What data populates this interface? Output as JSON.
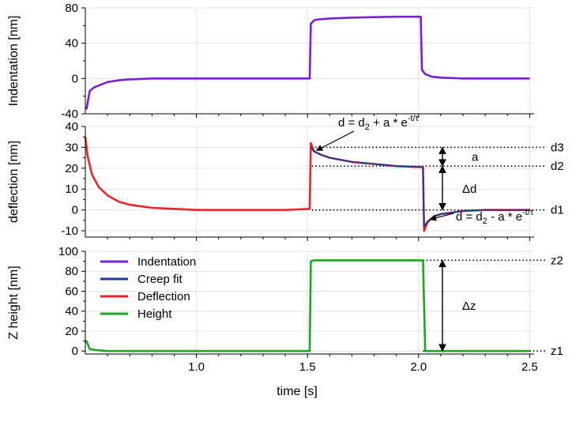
{
  "chart_data": [
    {
      "type": "line",
      "id": "indentation",
      "ylabel": "Indentation [nm]",
      "ylim": [
        -40,
        80
      ],
      "xlim": [
        0.5,
        2.52
      ],
      "yticks": [
        -40,
        0,
        40,
        80
      ],
      "ytick_labels": [
        "-40",
        "0",
        "40",
        "80"
      ],
      "xticks": [
        1.0,
        1.5,
        2.0,
        2.5
      ],
      "grid": true,
      "series": [
        {
          "name": "Indentation",
          "color": "#7a1fd1",
          "x": [
            0.505,
            0.52,
            0.54,
            0.57,
            0.6,
            0.65,
            0.7,
            0.8,
            0.9,
            1.0,
            1.2,
            1.4,
            1.51,
            1.515,
            1.53,
            1.55,
            1.6,
            1.7,
            1.8,
            1.9,
            2.0,
            2.01,
            2.015,
            2.03,
            2.06,
            2.1,
            2.2,
            2.3,
            2.4,
            2.5
          ],
          "y": [
            -35,
            -14,
            -10,
            -7,
            -4,
            -2,
            -1,
            0,
            0,
            0,
            0,
            0,
            0,
            62,
            66,
            67,
            68,
            69,
            69.5,
            70,
            70,
            70,
            10,
            5,
            2,
            1,
            0,
            0,
            0,
            0
          ]
        }
      ]
    },
    {
      "type": "line",
      "id": "deflection",
      "ylabel": "deflection [nm]",
      "ylim": [
        -13,
        40
      ],
      "xlim": [
        0.5,
        2.52
      ],
      "yticks": [
        -10,
        0,
        10,
        20,
        30,
        40
      ],
      "ytick_labels": [
        "-10",
        "0",
        "10",
        "20",
        "30",
        "40"
      ],
      "xticks": [
        1.0,
        1.5,
        2.0,
        2.5
      ],
      "grid": true,
      "series": [
        {
          "name": "Deflection",
          "color": "#e8262a",
          "x": [
            0.5,
            0.51,
            0.53,
            0.56,
            0.6,
            0.65,
            0.7,
            0.8,
            0.9,
            1.0,
            1.2,
            1.4,
            1.51,
            1.515,
            1.53,
            1.56,
            1.6,
            1.7,
            1.8,
            1.9,
            2.02,
            2.025,
            2.04,
            2.07,
            2.1,
            2.2,
            2.3,
            2.4,
            2.5
          ],
          "y": [
            35,
            26,
            17,
            11,
            7,
            4,
            2.5,
            1,
            0.5,
            0,
            0,
            0,
            0.5,
            32,
            28,
            26.5,
            25,
            23,
            22,
            21,
            20.5,
            -10,
            -6,
            -3,
            -2,
            -0.5,
            0,
            0,
            0
          ]
        },
        {
          "name": "Creep fit",
          "color": "#1f3a8a",
          "x": [
            1.515,
            1.53,
            1.56,
            1.6,
            1.7,
            1.8,
            1.9,
            2.02,
            2.025,
            2.04,
            2.07,
            2.1,
            2.2,
            2.3,
            2.4,
            2.5
          ],
          "y": [
            30,
            28,
            26.5,
            25,
            23,
            22,
            21,
            20.5,
            -8,
            -5.5,
            -3,
            -2,
            -0.5,
            0,
            0,
            0
          ]
        }
      ],
      "reference_lines": [
        {
          "label": "d3",
          "value": 30
        },
        {
          "label": "d2",
          "value": 21
        },
        {
          "label": "d1",
          "value": 0
        }
      ],
      "annotations": {
        "a": "a",
        "delta_d": "Δd",
        "rise_eq": {
          "lead": "d = d",
          "sub": "2",
          "mid": " + a * e",
          "sup": "-t/τ"
        },
        "fall_eq": {
          "lead": "d = d",
          "sub": "2",
          "mid": " - a * e",
          "sup": "-t/τ"
        }
      }
    },
    {
      "type": "line",
      "id": "z_height",
      "ylabel": "Z height [nm]",
      "xlabel": "time [s]",
      "ylim": [
        -3,
        100
      ],
      "xlim": [
        0.5,
        2.52
      ],
      "yticks": [
        0,
        20,
        40,
        60,
        80,
        100
      ],
      "ytick_labels": [
        "0",
        "20",
        "40",
        "60",
        "80",
        "100"
      ],
      "xticks": [
        1.0,
        1.5,
        2.0,
        2.5
      ],
      "xtick_labels": [
        "1.0",
        "1.5",
        "2.0",
        "2.5"
      ],
      "grid": true,
      "series": [
        {
          "name": "Height",
          "color": "#1ea620",
          "x": [
            0.5,
            0.505,
            0.52,
            0.55,
            0.6,
            1.51,
            1.515,
            1.53,
            2.02,
            2.03,
            2.05,
            2.5
          ],
          "y": [
            9,
            10,
            2,
            1,
            0,
            0,
            90,
            91,
            91,
            0,
            0,
            0
          ]
        }
      ],
      "reference_lines": [
        {
          "label": "z2",
          "value": 91
        },
        {
          "label": "z1",
          "value": 0
        }
      ],
      "annotations": {
        "delta_z": "Δz"
      }
    }
  ],
  "legend": {
    "placement": "upper-left of bottom panel",
    "entries": [
      {
        "name": "Indentation",
        "color": "#7a1fd1"
      },
      {
        "name": "Creep fit",
        "color": "#1f3a8a"
      },
      {
        "name": "Deflection",
        "color": "#e8262a"
      },
      {
        "name": "Height",
        "color": "#1ea620"
      }
    ]
  }
}
